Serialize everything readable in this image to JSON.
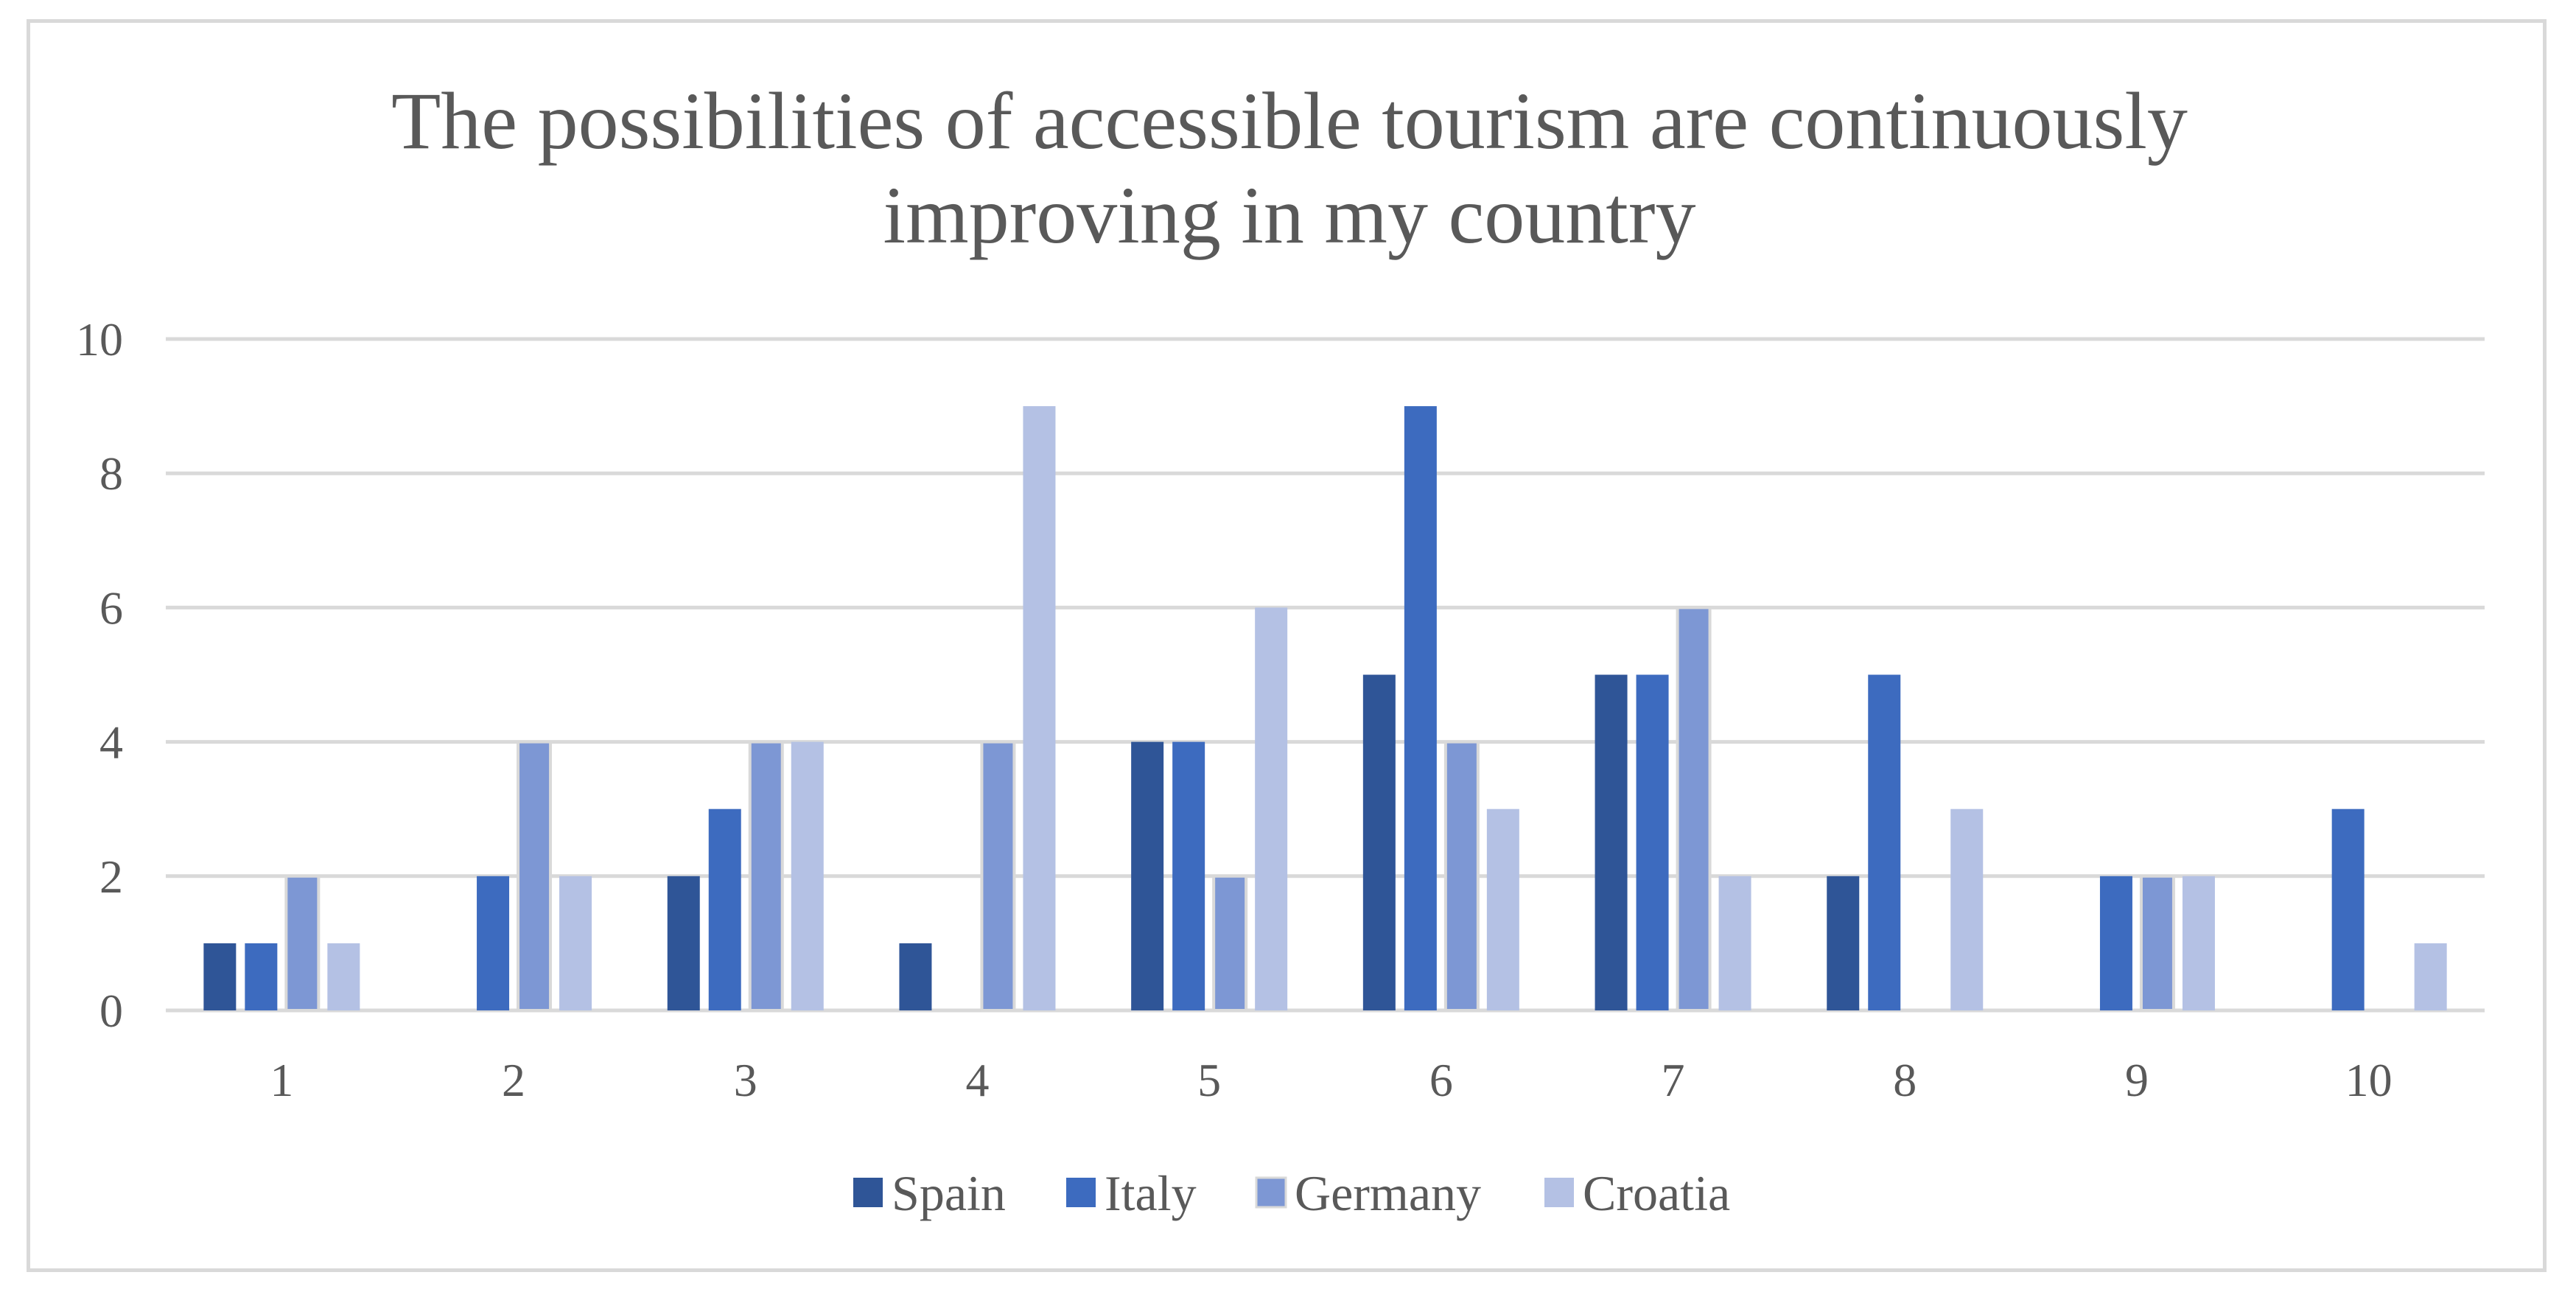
{
  "chart_data": {
    "type": "bar",
    "title_lines": [
      "The possibilities of accessible tourism are continuously",
      "improving in my country"
    ],
    "categories": [
      "1",
      "2",
      "3",
      "4",
      "5",
      "6",
      "7",
      "8",
      "9",
      "10"
    ],
    "series": [
      {
        "name": "Spain",
        "color": "#2f5597",
        "values": [
          1,
          0,
          2,
          1,
          4,
          5,
          5,
          2,
          0,
          0
        ]
      },
      {
        "name": "Italy",
        "color": "#3d6bbf",
        "values": [
          1,
          2,
          3,
          0,
          4,
          9,
          5,
          5,
          2,
          3
        ]
      },
      {
        "name": "Germany",
        "color": "#7d97d4",
        "values": [
          2,
          4,
          4,
          4,
          2,
          4,
          6,
          0,
          2,
          0
        ]
      },
      {
        "name": "Croatia",
        "color": "#b4c1e4",
        "values": [
          1,
          2,
          4,
          9,
          6,
          3,
          2,
          3,
          2,
          1
        ]
      }
    ],
    "ylim": [
      0,
      10
    ],
    "yticks": [
      "0",
      "2",
      "4",
      "6",
      "8",
      "10"
    ],
    "grid": true,
    "legend_position": "bottom"
  }
}
